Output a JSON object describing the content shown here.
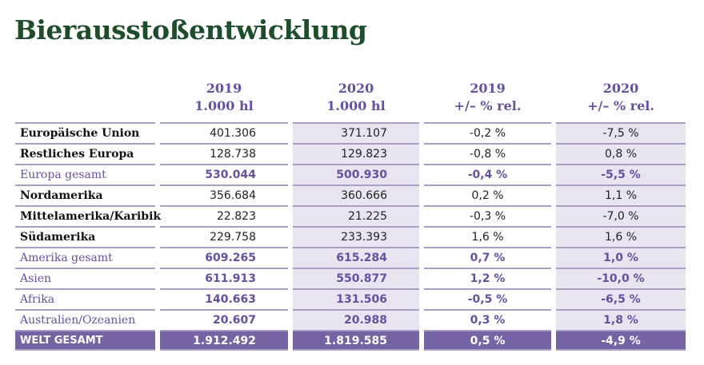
{
  "title": "Bierausstoßentwicklung",
  "headers": [
    {
      "l1": "",
      "l2": ""
    },
    {
      "l1": "2019",
      "l2": "1.000 hl"
    },
    {
      "l1": "2020",
      "l2": "1.000 hl"
    },
    {
      "l1": "2019",
      "l2": "+/– % rel."
    },
    {
      "l1": "2020",
      "l2": "+/– % rel."
    }
  ],
  "rows": [
    {
      "type": "normal",
      "cells": [
        "Europäische Union",
        "401.306",
        "371.107",
        "-0,2 %",
        "-7,5 %"
      ]
    },
    {
      "type": "normal",
      "cells": [
        "Restliches Europa",
        "128.738",
        "129.823",
        "-0,8 %",
        "0,8 %"
      ]
    },
    {
      "type": "sub",
      "cells": [
        "Europa gesamt",
        "530.044",
        "500.930",
        "-0,4 %",
        "-5,5 %"
      ]
    },
    {
      "type": "normal",
      "cells": [
        "Nordamerika",
        "356.684",
        "360.666",
        "0,2 %",
        "1,1 %"
      ]
    },
    {
      "type": "normal",
      "cells": [
        "Mittelamerika/Karibik",
        "22.823",
        "21.225",
        "-0,3 %",
        "-7,0 %"
      ]
    },
    {
      "type": "normal",
      "cells": [
        "Südamerika",
        "229.758",
        "233.393",
        "1,6 %",
        "1,6 %"
      ]
    },
    {
      "type": "sub",
      "cells": [
        "Amerika gesamt",
        "609.265",
        "615.284",
        "0,7 %",
        "1,0 %"
      ]
    },
    {
      "type": "sub",
      "cells": [
        "Asien",
        "611.913",
        "550.877",
        "1,2 %",
        "-10,0 %"
      ]
    },
    {
      "type": "sub",
      "cells": [
        "Afrika",
        "140.663",
        "131.506",
        "-0,5 %",
        "-6,5 %"
      ]
    },
    {
      "type": "sub",
      "cells": [
        "Australien/Ozeanien",
        "20.607",
        "20.988",
        "0,3 %",
        "1,8 %"
      ]
    },
    {
      "type": "tot",
      "cells": [
        "WELT GESAMT",
        "1.912.492",
        "1.819.585",
        "0,5 %",
        "-4,9 %"
      ]
    }
  ],
  "colors": {
    "title": "#1e4d2b",
    "accent": "#6650a0",
    "total_bg": "#7563a3",
    "shade": "#e8e5f0"
  }
}
